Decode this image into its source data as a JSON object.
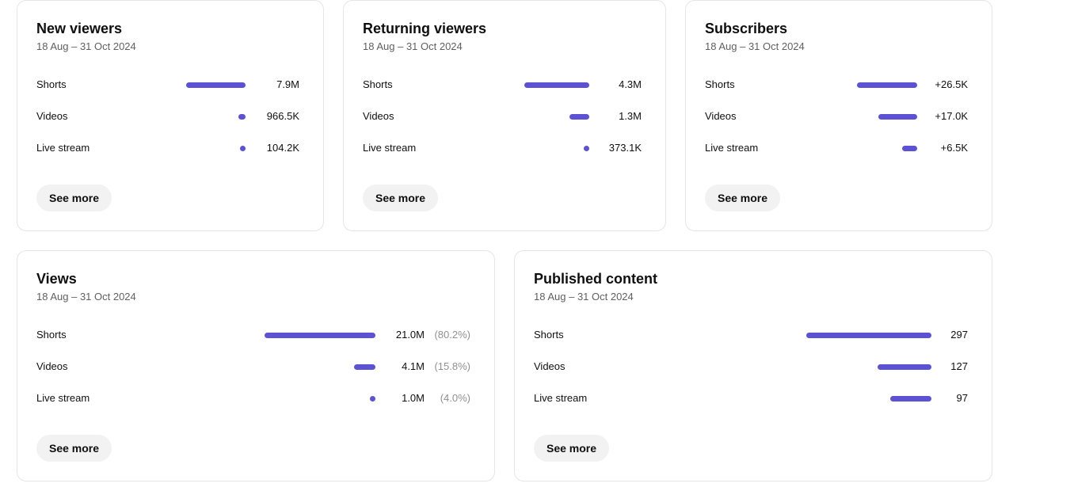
{
  "cards": [
    {
      "title": "New viewers",
      "date_range": "18 Aug – 31 Oct 2024",
      "button_label": "See more",
      "rows": [
        {
          "label": "Shorts",
          "value": "7.9M",
          "share": 1.0
        },
        {
          "label": "Videos",
          "value": "966.5K",
          "share": 0.12
        },
        {
          "label": "Live stream",
          "value": "104.2K",
          "share": 0.013
        }
      ]
    },
    {
      "title": "Returning viewers",
      "date_range": "18 Aug – 31 Oct 2024",
      "button_label": "See more",
      "rows": [
        {
          "label": "Shorts",
          "value": "4.3M",
          "share": 1.0
        },
        {
          "label": "Videos",
          "value": "1.3M",
          "share": 0.3
        },
        {
          "label": "Live stream",
          "value": "373.1K",
          "share": 0.087
        }
      ]
    },
    {
      "title": "Subscribers",
      "date_range": "18 Aug – 31 Oct 2024",
      "button_label": "See more",
      "rows": [
        {
          "label": "Shorts",
          "value": "+26.5K",
          "share": 1.0
        },
        {
          "label": "Videos",
          "value": "+17.0K",
          "share": 0.64
        },
        {
          "label": "Live stream",
          "value": "+6.5K",
          "share": 0.245
        }
      ]
    },
    {
      "title": "Views",
      "date_range": "18 Aug – 31 Oct 2024",
      "button_label": "See more",
      "rows": [
        {
          "label": "Shorts",
          "value": "21.0M",
          "pct": "(80.2%)",
          "share": 1.0
        },
        {
          "label": "Videos",
          "value": "4.1M",
          "pct": "(15.8%)",
          "share": 0.195
        },
        {
          "label": "Live stream",
          "value": "1.0M",
          "pct": "(4.0%)",
          "share": 0.048
        }
      ]
    },
    {
      "title": "Published content",
      "date_range": "18 Aug – 31 Oct 2024",
      "button_label": "See more",
      "rows": [
        {
          "label": "Shorts",
          "value": "297",
          "share": 1.0
        },
        {
          "label": "Videos",
          "value": "127",
          "share": 0.43
        },
        {
          "label": "Live stream",
          "value": "97",
          "share": 0.327
        }
      ]
    }
  ],
  "colors": {
    "bar": "#5d52d3",
    "card_border": "#e5e5e5",
    "button_bg": "#f2f2f2",
    "muted_text": "#606060",
    "pct_text": "#909090"
  }
}
